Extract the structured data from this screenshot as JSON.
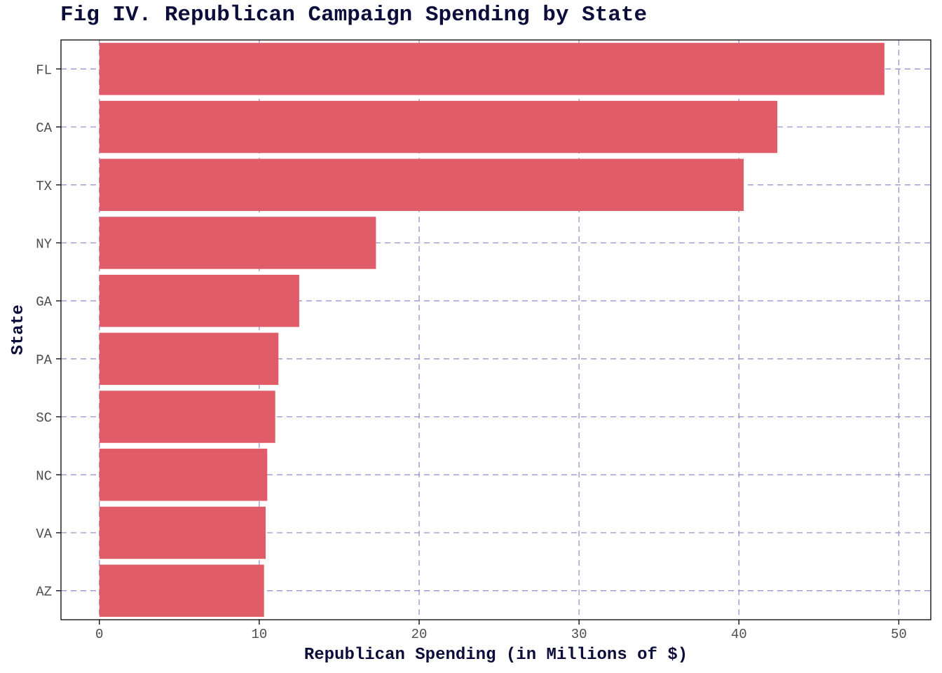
{
  "chart_data": {
    "type": "bar",
    "orientation": "horizontal",
    "title": "Fig IV. Republican Campaign Spending by State",
    "xlabel": "Republican Spending (in Millions of $)",
    "ylabel": "State",
    "categories": [
      "FL",
      "CA",
      "TX",
      "NY",
      "GA",
      "PA",
      "SC",
      "NC",
      "VA",
      "AZ"
    ],
    "values": [
      49.1,
      42.4,
      40.3,
      17.3,
      12.5,
      11.2,
      11.0,
      10.5,
      10.4,
      10.3
    ],
    "xlim": [
      -2.4,
      52.0
    ],
    "xticks": [
      0,
      10,
      20,
      30,
      40,
      50
    ],
    "xtick_labels": [
      "0",
      "10",
      "20",
      "30",
      "40",
      "50"
    ],
    "grid": true,
    "grid_style": "dashed",
    "colors": {
      "bar": "#e05c69",
      "grid": "#8c8cc8",
      "title": "#0d0d3b",
      "axis": "#000000",
      "tick_text": "#4d4d4d"
    }
  }
}
